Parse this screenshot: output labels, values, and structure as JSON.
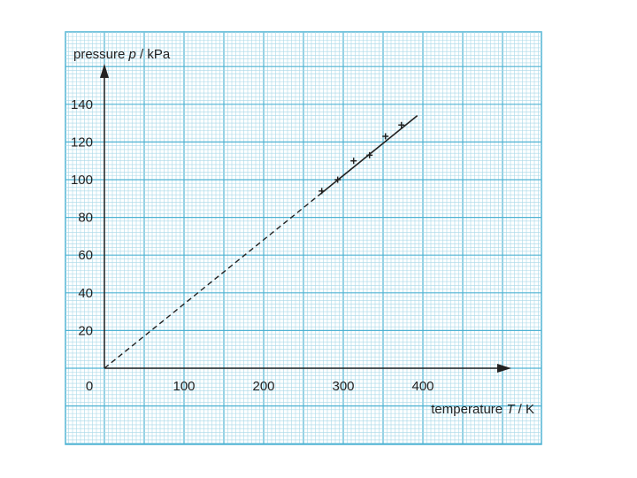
{
  "chart_data": {
    "type": "scatter",
    "xlabel": {
      "prefix": "temperature ",
      "symbol": "T",
      "suffix": " / K"
    },
    "ylabel": {
      "prefix": "pressure ",
      "symbol": "p",
      "suffix": " / kPa"
    },
    "x_ticks": [
      0,
      100,
      200,
      300,
      400
    ],
    "y_ticks": [
      20,
      40,
      60,
      80,
      100,
      120,
      140
    ],
    "x_tick_labels": [
      "0",
      "100",
      "200",
      "300",
      "400"
    ],
    "y_tick_labels": [
      "20",
      "40",
      "60",
      "80",
      "100",
      "120",
      "140"
    ],
    "xlim": [
      0,
      500
    ],
    "ylim": [
      0,
      150
    ],
    "grid": true,
    "series": [
      {
        "points": [
          {
            "x": 273,
            "y": 94
          },
          {
            "x": 293,
            "y": 100
          },
          {
            "x": 313,
            "y": 110
          },
          {
            "x": 333,
            "y": 113
          },
          {
            "x": 353,
            "y": 123
          },
          {
            "x": 373,
            "y": 129
          }
        ],
        "color": "#222222"
      }
    ],
    "fit_line": {
      "from": {
        "x": 273,
        "y": 93
      },
      "to": {
        "x": 393,
        "y": 134
      },
      "style": "solid"
    },
    "extrapolation": {
      "from": {
        "x": 0,
        "y": 0
      },
      "to": {
        "x": 273,
        "y": 93
      },
      "style": "dashed"
    },
    "colors": {
      "paper": "#ffffff",
      "grid_minor": "#a8d8e8",
      "grid_major": "#4fb3d3",
      "ink": "#222222"
    }
  }
}
